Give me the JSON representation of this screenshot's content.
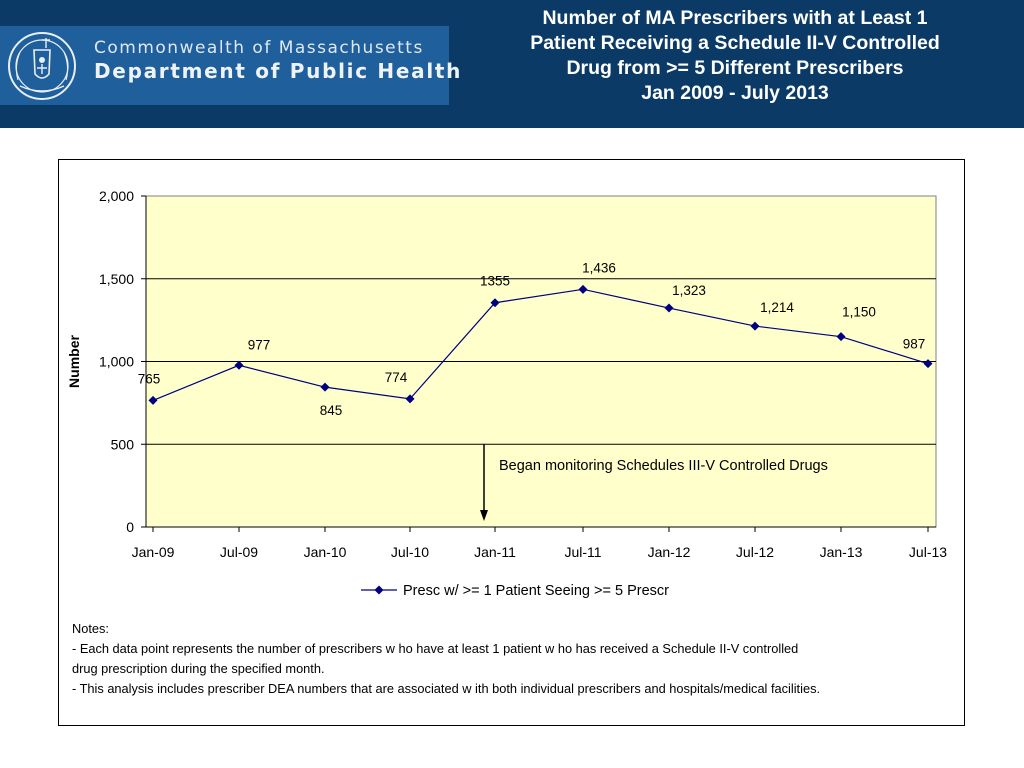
{
  "header": {
    "logo_line1": "Commonwealth of Massachusetts",
    "logo_line2": "Department of Public Health",
    "title_lines": [
      "Number of MA Prescribers with at Least 1",
      "Patient Receiving a  Schedule II-V Controlled",
      "Drug from >= 5 Different Prescribers",
      "Jan 2009 - July 2013"
    ]
  },
  "chart_data": {
    "type": "line",
    "title": "",
    "xlabel": "",
    "ylabel": "Number",
    "x_tick_labels": [
      "Jan-09",
      "Jul-09",
      "Jan-10",
      "Jul-10",
      "Jan-11",
      "Jul-11",
      "Jan-12",
      "Jul-12",
      "Jan-13",
      "Jul-13"
    ],
    "y_tick_labels": [
      "0",
      "500",
      "1,000",
      "1,500",
      "2,000"
    ],
    "ylim": [
      0,
      2000
    ],
    "grid": "horizontal",
    "plot_background": "#ffffcc",
    "series": [
      {
        "name": "Presc w/ >= 1 Patient Seeing >= 5 Prescr",
        "color": "#00007f",
        "points": [
          {
            "x": "Jan-09",
            "y": 765,
            "label": "765"
          },
          {
            "x": "Jul-09",
            "y": 977,
            "label": "977"
          },
          {
            "x": "Jan-10",
            "y": 845,
            "label": "845"
          },
          {
            "x": "Jul-10",
            "y": 774,
            "label": "774"
          },
          {
            "x": "Jan-11",
            "y": 1355,
            "label": "1355"
          },
          {
            "x": "Jul-11",
            "y": 1436,
            "label": "1,436"
          },
          {
            "x": "Jan-12",
            "y": 1323,
            "label": "1,323"
          },
          {
            "x": "Jul-12",
            "y": 1214,
            "label": "1,214"
          },
          {
            "x": "Jan-13",
            "y": 1150,
            "label": "1,150"
          },
          {
            "x": "Jul-13",
            "y": 987,
            "label": "987"
          }
        ]
      }
    ],
    "annotation": {
      "text": "Began monitoring Schedules III-V Controlled Drugs",
      "at_x": "Jan-11"
    },
    "legend_position": "bottom"
  },
  "notes": {
    "heading": "Notes:",
    "lines": [
      "- Each data point represents the number of prescribers w ho have at least 1 patient w ho has received a Schedule II-V controlled",
      "drug prescription during the specified month.",
      "- This analysis includes prescriber DEA numbers that are associated w ith both individual prescribers and hospitals/medical facilities."
    ]
  }
}
